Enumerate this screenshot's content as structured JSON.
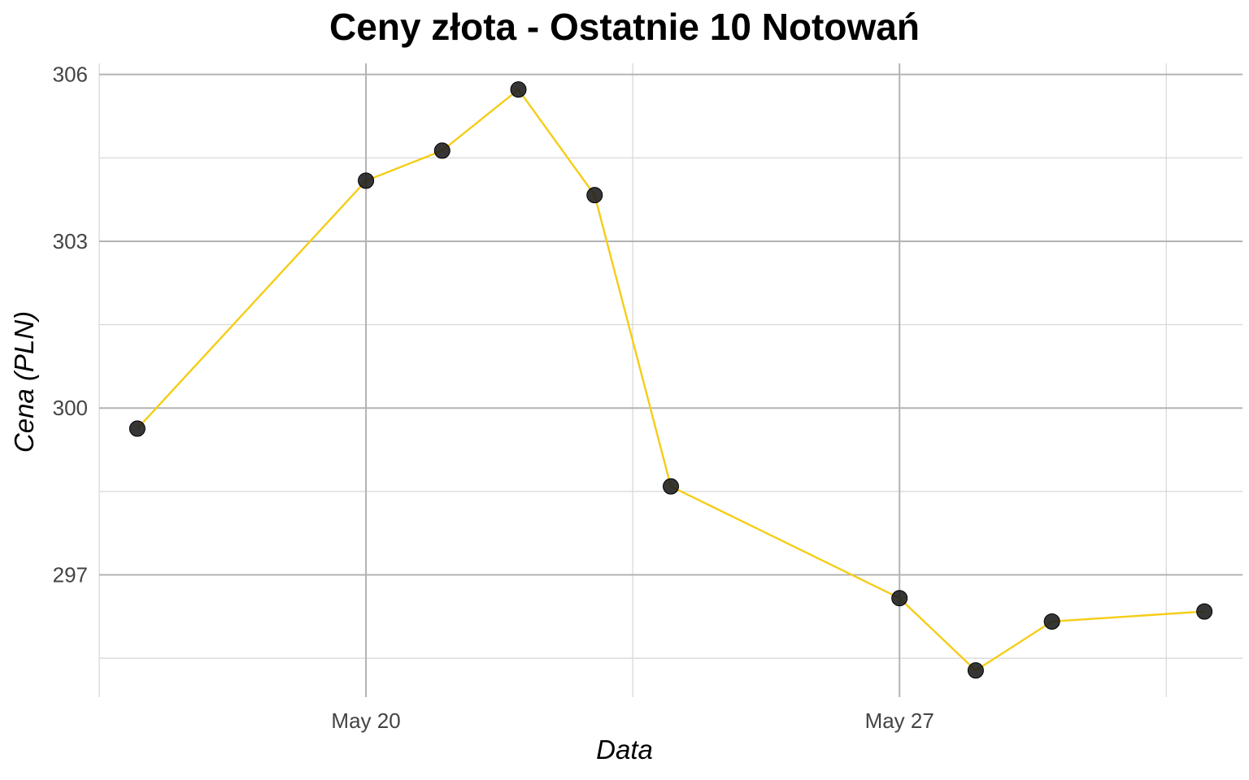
{
  "chart_data": {
    "type": "line",
    "title": "Ceny złota - Ostatnie 10 Notowań",
    "xlabel": "Data",
    "ylabel": "Cena (PLN)",
    "x_tick_labels": [
      {
        "date": "2024-05-20",
        "label": "May 20"
      },
      {
        "date": "2024-05-27",
        "label": "May 27"
      }
    ],
    "y_tick_labels": [
      297,
      300,
      303,
      306
    ],
    "xlim": [
      "2024-05-16T12:00",
      "2024-05-31T12:00"
    ],
    "ylim": [
      294.8,
      306.2
    ],
    "grid": true,
    "line_color": "#F5CD16",
    "point_color": "#1a1a1a",
    "series": [
      {
        "x": [
          "2024-05-17",
          "2024-05-20",
          "2024-05-21",
          "2024-05-22",
          "2024-05-23",
          "2024-05-24",
          "2024-05-27",
          "2024-05-28",
          "2024-05-29",
          "2024-05-31"
        ],
        "values": [
          299.63,
          304.09,
          304.63,
          305.73,
          303.83,
          298.59,
          296.58,
          295.28,
          296.16,
          296.34
        ]
      }
    ]
  }
}
